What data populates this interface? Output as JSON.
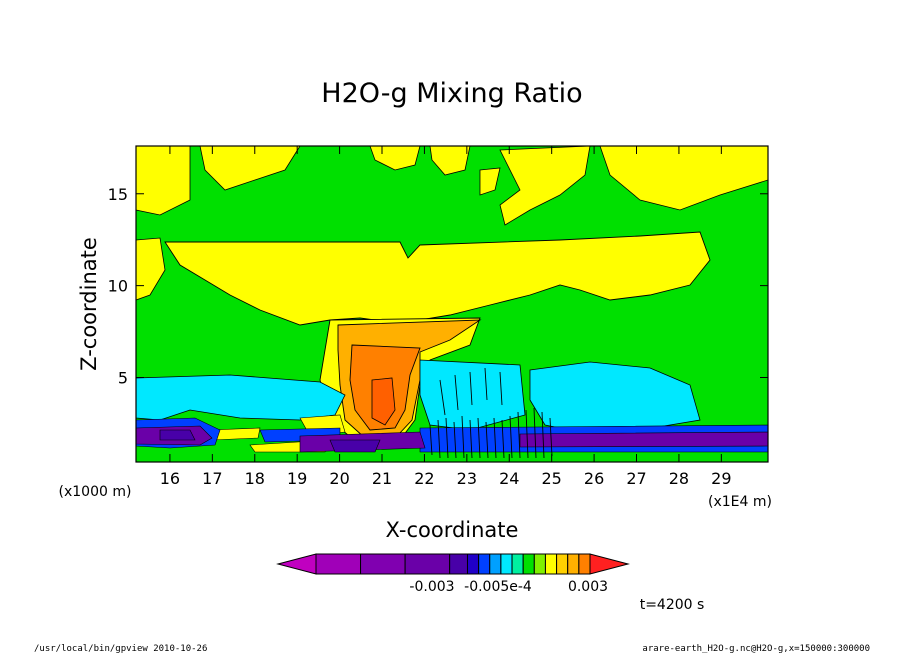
{
  "chart_data": {
    "type": "heatmap",
    "title": "H2O-g Mixing Ratio",
    "xlabel": "X-coordinate",
    "ylabel": "Z-coordinate",
    "x_unit": "(x1E4 m)",
    "y_unit": "(x1000 m)",
    "xlim": [
      15.2,
      30.1
    ],
    "ylim": [
      0.4,
      17.6
    ],
    "x_ticks": [
      "16",
      "17",
      "18",
      "19",
      "20",
      "21",
      "22",
      "23",
      "24",
      "25",
      "26",
      "27",
      "28",
      "29"
    ],
    "y_ticks": [
      "5",
      "10",
      "15"
    ],
    "x_tick_values": [
      16,
      17,
      18,
      19,
      20,
      21,
      22,
      23,
      24,
      25,
      26,
      27,
      28,
      29
    ],
    "y_tick_values": [
      5,
      10,
      15
    ],
    "colorbar_labels": [
      "-0.003",
      "-0.005e-4",
      "0.003"
    ],
    "colorbar_colors": [
      "#c000c0",
      "#a000b8",
      "#8000b0",
      "#6a00a8",
      "#4800a8",
      "#2000c8",
      "#0040ff",
      "#00a0ff",
      "#00e8ff",
      "#00f0a0",
      "#00e000",
      "#80f000",
      "#ffff00",
      "#ffd000",
      "#ffb000",
      "#ff8000",
      "#ff2020"
    ],
    "time_label": "t=4200 s",
    "regions": [
      {
        "level": "background",
        "color": "#00e000"
      },
      {
        "level": "positive-low",
        "color": "#ffff00"
      },
      {
        "level": "positive-mid",
        "color": "#ffb000"
      },
      {
        "level": "positive-high",
        "color": "#ff8000"
      },
      {
        "level": "negative-low",
        "color": "#00e8ff"
      },
      {
        "level": "negative-mid",
        "color": "#0040ff"
      },
      {
        "level": "negative-high",
        "color": "#6a00a8"
      }
    ]
  },
  "footer": {
    "left": "/usr/local/bin/gpview   2010-10-26",
    "right": "arare-earth_H2O-g.nc@H2O-g,x=150000:300000"
  }
}
